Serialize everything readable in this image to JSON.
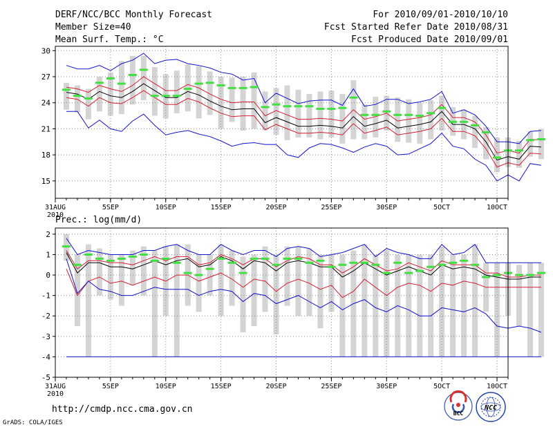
{
  "header": {
    "title": "DERF/NCC/BCC Monthly Forecast",
    "member_size": "Member Size=40",
    "variable": "Mean Surf. Temp.: °C",
    "period": "For 2010/09/01-2010/10/10",
    "started": "Fcst Started Refer Date 2010/08/31",
    "produced": "Fcst Produced Date 2010/09/01"
  },
  "footer": {
    "url": "http://cmdp.ncc.cma.gov.cn",
    "credit": "GrADS: COLA/IGES",
    "logo_bcc": "BCC",
    "logo_ncc": "NCC"
  },
  "colors": {
    "box": "#d4d4d4",
    "mean": "#000000",
    "spread": "#d21e32",
    "extreme": "#1010cc",
    "obs": "#40e040",
    "grid": "#888888"
  },
  "chart_data": [
    {
      "type": "line",
      "title": "Mean Surf. Temp.: °C",
      "x_tick_labels": [
        "31AUG",
        "5SEP",
        "10SEP",
        "15SEP",
        "20SEP",
        "25SEP",
        "30SEP",
        "5OCT",
        "10OCT"
      ],
      "x_tick_day_index": [
        0,
        5,
        10,
        15,
        20,
        25,
        30,
        35,
        40
      ],
      "x_year_label": "2010",
      "x_range": [
        0,
        41
      ],
      "ylim": [
        13,
        30.5
      ],
      "y_ticks": [
        15,
        18,
        21,
        24,
        27,
        30
      ],
      "x_start": 1,
      "series": [
        {
          "name": "ensemble mean",
          "values": [
            25.2,
            25.0,
            24.4,
            25.3,
            24.8,
            24.6,
            25.3,
            26.2,
            25.4,
            24.6,
            24.6,
            25.3,
            24.9,
            24.2,
            23.6,
            23.2,
            23.3,
            23.3,
            21.7,
            22.3,
            21.8,
            21.3,
            21.3,
            21.4,
            21.3,
            21.1,
            22.4,
            21.3,
            21.6,
            22.0,
            21.1,
            21.3,
            21.5,
            21.8,
            23.0,
            21.5,
            21.5,
            21.0,
            19.5,
            17.4,
            17.8,
            17.5,
            19.0,
            18.9
          ]
        },
        {
          "name": "spread upper",
          "values": [
            25.8,
            25.6,
            25.2,
            26.0,
            25.6,
            25.3,
            26.0,
            27.0,
            26.2,
            25.4,
            25.4,
            26.1,
            25.7,
            25.0,
            24.4,
            24.0,
            24.1,
            24.1,
            22.5,
            23.1,
            22.6,
            22.1,
            22.1,
            22.2,
            22.1,
            21.9,
            23.2,
            22.1,
            22.4,
            22.8,
            21.9,
            22.1,
            22.3,
            22.6,
            23.8,
            22.3,
            22.3,
            21.8,
            20.3,
            18.2,
            18.5,
            18.2,
            19.8,
            19.7
          ]
        },
        {
          "name": "spread lower",
          "values": [
            24.6,
            24.4,
            23.6,
            24.6,
            24.0,
            23.9,
            24.6,
            25.4,
            24.6,
            23.8,
            23.8,
            24.5,
            24.1,
            23.4,
            22.8,
            22.4,
            22.5,
            22.5,
            20.9,
            21.5,
            21.0,
            20.5,
            20.5,
            20.6,
            20.5,
            20.3,
            21.6,
            20.5,
            20.8,
            21.2,
            20.3,
            20.5,
            20.7,
            21.0,
            22.2,
            20.7,
            20.7,
            20.2,
            18.7,
            16.6,
            17.1,
            16.8,
            18.2,
            18.1
          ]
        },
        {
          "name": "ensemble max",
          "values": [
            28.3,
            27.9,
            27.9,
            28.3,
            27.7,
            28.5,
            28.9,
            29.7,
            28.5,
            28.9,
            29.0,
            28.5,
            28.3,
            28.0,
            27.5,
            27.3,
            26.6,
            26.8,
            24.0,
            25.1,
            24.5,
            23.9,
            24.2,
            24.3,
            24.3,
            23.7,
            25.6,
            23.6,
            23.8,
            24.4,
            24.4,
            23.9,
            24.1,
            24.4,
            25.3,
            22.8,
            23.2,
            22.6,
            21.3,
            19.5,
            19.5,
            19.3,
            20.7,
            20.8
          ]
        },
        {
          "name": "ensemble min",
          "values": [
            23.0,
            23.0,
            21.1,
            22.0,
            21.0,
            20.7,
            21.9,
            22.7,
            21.4,
            20.3,
            20.6,
            20.8,
            20.4,
            20.1,
            19.6,
            19.0,
            19.3,
            19.4,
            19.2,
            19.2,
            18.0,
            17.7,
            18.8,
            19.3,
            19.2,
            18.8,
            18.3,
            18.9,
            19.3,
            19.0,
            18.0,
            18.1,
            18.7,
            19.3,
            20.5,
            19.0,
            18.7,
            17.5,
            16.8,
            15.0,
            15.7,
            15.0,
            17.0,
            16.8
          ]
        },
        {
          "name": "observed",
          "values": [
            25.5,
            24.8,
            24.5,
            26.3,
            26.8,
            26.2,
            27.2,
            27.8,
            24.8,
            24.8,
            24.8,
            25.6,
            26.2,
            26.3,
            26.0,
            25.7,
            25.7,
            25.8,
            23.5,
            23.8,
            23.6,
            23.6,
            23.6,
            23.3,
            23.3,
            23.4,
            24.6,
            22.6,
            22.6,
            23.0,
            22.6,
            22.6,
            22.5,
            22.8,
            23.4,
            21.8,
            21.8,
            21.4,
            20.6,
            17.7,
            18.5,
            18.5,
            19.7,
            19.8
          ]
        }
      ],
      "box_ranges": [
        [
          23.2,
          26.3
        ],
        [
          22.9,
          26.0
        ],
        [
          22.1,
          25.6
        ],
        [
          23.0,
          27.0
        ],
        [
          22.5,
          27.5
        ],
        [
          22.7,
          28.8
        ],
        [
          23.8,
          29.4
        ],
        [
          24.3,
          29.4
        ],
        [
          22.5,
          28.1
        ],
        [
          22.2,
          27.3
        ],
        [
          22.8,
          27.7
        ],
        [
          23.0,
          28.4
        ],
        [
          22.2,
          28.2
        ],
        [
          22.6,
          27.6
        ],
        [
          21.0,
          27.0
        ],
        [
          21.8,
          26.9
        ],
        [
          20.8,
          27.0
        ],
        [
          21.0,
          27.5
        ],
        [
          20.8,
          25.3
        ],
        [
          20.3,
          25.7
        ],
        [
          19.7,
          26.0
        ],
        [
          20.0,
          25.5
        ],
        [
          20.0,
          25.0
        ],
        [
          19.8,
          25.3
        ],
        [
          20.0,
          25.4
        ],
        [
          19.3,
          25.0
        ],
        [
          19.8,
          26.6
        ],
        [
          19.8,
          23.8
        ],
        [
          20.0,
          24.7
        ],
        [
          20.8,
          24.8
        ],
        [
          19.5,
          24.6
        ],
        [
          19.4,
          24.4
        ],
        [
          19.3,
          24.0
        ],
        [
          19.8,
          24.3
        ],
        [
          20.8,
          24.8
        ],
        [
          20.2,
          23.5
        ],
        [
          19.8,
          23.2
        ],
        [
          18.8,
          22.5
        ],
        [
          17.5,
          21.2
        ],
        [
          16.0,
          20.0
        ],
        [
          16.6,
          20.0
        ],
        [
          16.5,
          19.6
        ],
        [
          17.8,
          20.7
        ],
        [
          17.5,
          21.0
        ]
      ]
    },
    {
      "type": "line",
      "title": "Prec.: log(mm/d)",
      "x_tick_labels": [
        "31AUG",
        "5SEP",
        "10SEP",
        "15SEP",
        "20SEP",
        "25SEP",
        "30SEP",
        "5OCT",
        "10OCT"
      ],
      "x_tick_day_index": [
        0,
        5,
        10,
        15,
        20,
        25,
        30,
        35,
        40
      ],
      "x_year_label": "2010",
      "x_range": [
        0,
        41
      ],
      "ylim": [
        -5,
        2.3
      ],
      "y_ticks": [
        -5,
        -4,
        -3,
        -2,
        -1,
        0,
        1,
        2
      ],
      "x_start": 1,
      "series": [
        {
          "name": "ensemble mean",
          "values": [
            1.1,
            0.1,
            0.6,
            0.6,
            0.4,
            0.4,
            0.3,
            0.5,
            0.7,
            0.5,
            0.7,
            0.8,
            0.4,
            0.5,
            0.9,
            0.7,
            0.3,
            0.7,
            0.6,
            0.2,
            0.6,
            0.7,
            0.6,
            0.4,
            0.4,
            -0.1,
            0.2,
            0.6,
            0.3,
            0.0,
            0.2,
            0.4,
            0.2,
            0.0,
            0.5,
            0.3,
            0.4,
            0.3,
            0.0,
            -0.1,
            -0.2,
            -0.2,
            -0.1,
            -0.1
          ]
        },
        {
          "name": "spread upper",
          "values": [
            1.2,
            0.3,
            0.7,
            0.7,
            0.6,
            0.6,
            0.5,
            0.7,
            0.9,
            0.7,
            0.9,
            0.9,
            0.5,
            0.6,
            1.0,
            0.8,
            0.5,
            0.8,
            0.8,
            0.4,
            0.7,
            0.9,
            0.8,
            0.5,
            0.5,
            0.1,
            0.4,
            0.8,
            0.5,
            0.2,
            0.3,
            0.6,
            0.4,
            0.2,
            0.7,
            0.5,
            0.5,
            0.5,
            0.1,
            0.1,
            -0.1,
            -0.1,
            0.0,
            0.0
          ]
        },
        {
          "name": "spread lower",
          "values": [
            0.3,
            -1.0,
            -0.3,
            -0.1,
            -0.4,
            -0.3,
            -0.5,
            -0.3,
            -0.1,
            -0.3,
            0.0,
            0.0,
            -0.3,
            -0.1,
            0.1,
            -0.2,
            -0.6,
            -0.2,
            -0.3,
            -0.8,
            -0.4,
            -0.2,
            -0.4,
            -0.7,
            -0.5,
            -1.1,
            -0.8,
            -0.2,
            -0.6,
            -1.0,
            -0.6,
            -0.4,
            -0.5,
            -0.8,
            -0.4,
            -0.5,
            -0.3,
            -0.4,
            -0.6,
            -0.6,
            -0.6,
            -0.6,
            -0.6,
            -0.6
          ]
        },
        {
          "name": "ensemble max",
          "values": [
            1.8,
            1.0,
            1.2,
            1.1,
            1.0,
            1.0,
            1.0,
            1.2,
            1.2,
            1.4,
            1.5,
            1.2,
            1.0,
            1.0,
            1.5,
            1.2,
            1.0,
            1.2,
            1.2,
            0.9,
            1.3,
            1.4,
            1.3,
            0.9,
            1.0,
            1.1,
            1.3,
            1.5,
            0.9,
            1.3,
            1.1,
            1.0,
            0.8,
            0.8,
            1.5,
            1.0,
            1.1,
            1.5,
            0.6,
            0.6,
            0.6,
            0.6,
            0.6,
            0.6
          ]
        },
        {
          "name": "ensemble min",
          "values": [
            0.8,
            -0.9,
            -0.3,
            -0.7,
            -0.8,
            -1.0,
            -1.0,
            -0.8,
            -0.6,
            -0.7,
            -0.7,
            -0.7,
            -1.0,
            -0.8,
            -0.7,
            -0.8,
            -1.3,
            -0.9,
            -1.0,
            -1.4,
            -1.2,
            -1.0,
            -1.3,
            -1.6,
            -1.3,
            -1.7,
            -1.4,
            -1.2,
            -1.6,
            -1.8,
            -1.5,
            -1.7,
            -2.0,
            -2.0,
            -1.6,
            -1.7,
            -1.8,
            -1.6,
            -1.9,
            -2.5,
            -2.6,
            -2.5,
            -2.6,
            -2.8
          ]
        },
        {
          "name": "dry threshold",
          "values": [
            -4,
            -4,
            -4,
            -4,
            -4,
            -4,
            -4,
            -4,
            -4,
            -4,
            -4,
            -4,
            -4,
            -4,
            -4,
            -4,
            -4,
            -4,
            -4,
            -4,
            -4,
            -4,
            -4,
            -4,
            -4,
            -4,
            -4,
            -4,
            -4,
            -4,
            -4,
            -4,
            -4,
            -4,
            -4,
            -4,
            -4,
            -4,
            -4,
            -4,
            -4,
            -4,
            -4,
            -4
          ]
        },
        {
          "name": "observed",
          "values": [
            1.4,
            0.5,
            1.0,
            0.8,
            0.7,
            0.8,
            0.9,
            1.0,
            0.7,
            0.8,
            0.6,
            0.1,
            0.0,
            0.3,
            0.8,
            0.6,
            0.1,
            0.8,
            0.8,
            0.5,
            0.8,
            0.8,
            0.6,
            0.7,
            0.4,
            0.5,
            0.6,
            0.6,
            0.5,
            0.1,
            0.6,
            0.1,
            0.2,
            0.4,
            0.5,
            0.6,
            0.7,
            0.5,
            -0.1,
            0.0,
            0.1,
            0.0,
            0.0,
            0.1
          ]
        }
      ],
      "box_ranges": [
        [
          0.7,
          2.0
        ],
        [
          -2.5,
          1.0
        ],
        [
          -4.0,
          1.5
        ],
        [
          -1.0,
          1.3
        ],
        [
          -1.2,
          1.0
        ],
        [
          -1.5,
          1.0
        ],
        [
          -0.5,
          1.2
        ],
        [
          -1.0,
          1.4
        ],
        [
          -4.0,
          1.2
        ],
        [
          -2.0,
          1.4
        ],
        [
          -4.0,
          1.5
        ],
        [
          -1.5,
          1.5
        ],
        [
          -1.8,
          1.0
        ],
        [
          -1.0,
          1.0
        ],
        [
          -2.0,
          1.5
        ],
        [
          -1.5,
          1.2
        ],
        [
          -2.8,
          0.9
        ],
        [
          -2.5,
          1.0
        ],
        [
          -1.8,
          1.4
        ],
        [
          -2.9,
          1.0
        ],
        [
          -1.5,
          1.4
        ],
        [
          -2.0,
          1.4
        ],
        [
          -2.0,
          1.3
        ],
        [
          -2.6,
          1.0
        ],
        [
          -1.8,
          1.0
        ],
        [
          -4.0,
          1.0
        ],
        [
          -4.0,
          1.2
        ],
        [
          -4.0,
          1.5
        ],
        [
          -4.0,
          1.0
        ],
        [
          -4.0,
          1.2
        ],
        [
          -4.0,
          1.0
        ],
        [
          -4.0,
          1.0
        ],
        [
          -4.0,
          1.0
        ],
        [
          -4.0,
          1.0
        ],
        [
          -4.0,
          1.4
        ],
        [
          -4.0,
          1.0
        ],
        [
          -4.0,
          1.0
        ],
        [
          -4.0,
          1.5
        ],
        [
          -1.8,
          0.6
        ],
        [
          -4.0,
          0.6
        ],
        [
          -2.0,
          0.6
        ],
        [
          -2.5,
          0.5
        ],
        [
          -4.0,
          0.6
        ],
        [
          -4.0,
          0.6
        ]
      ]
    }
  ]
}
